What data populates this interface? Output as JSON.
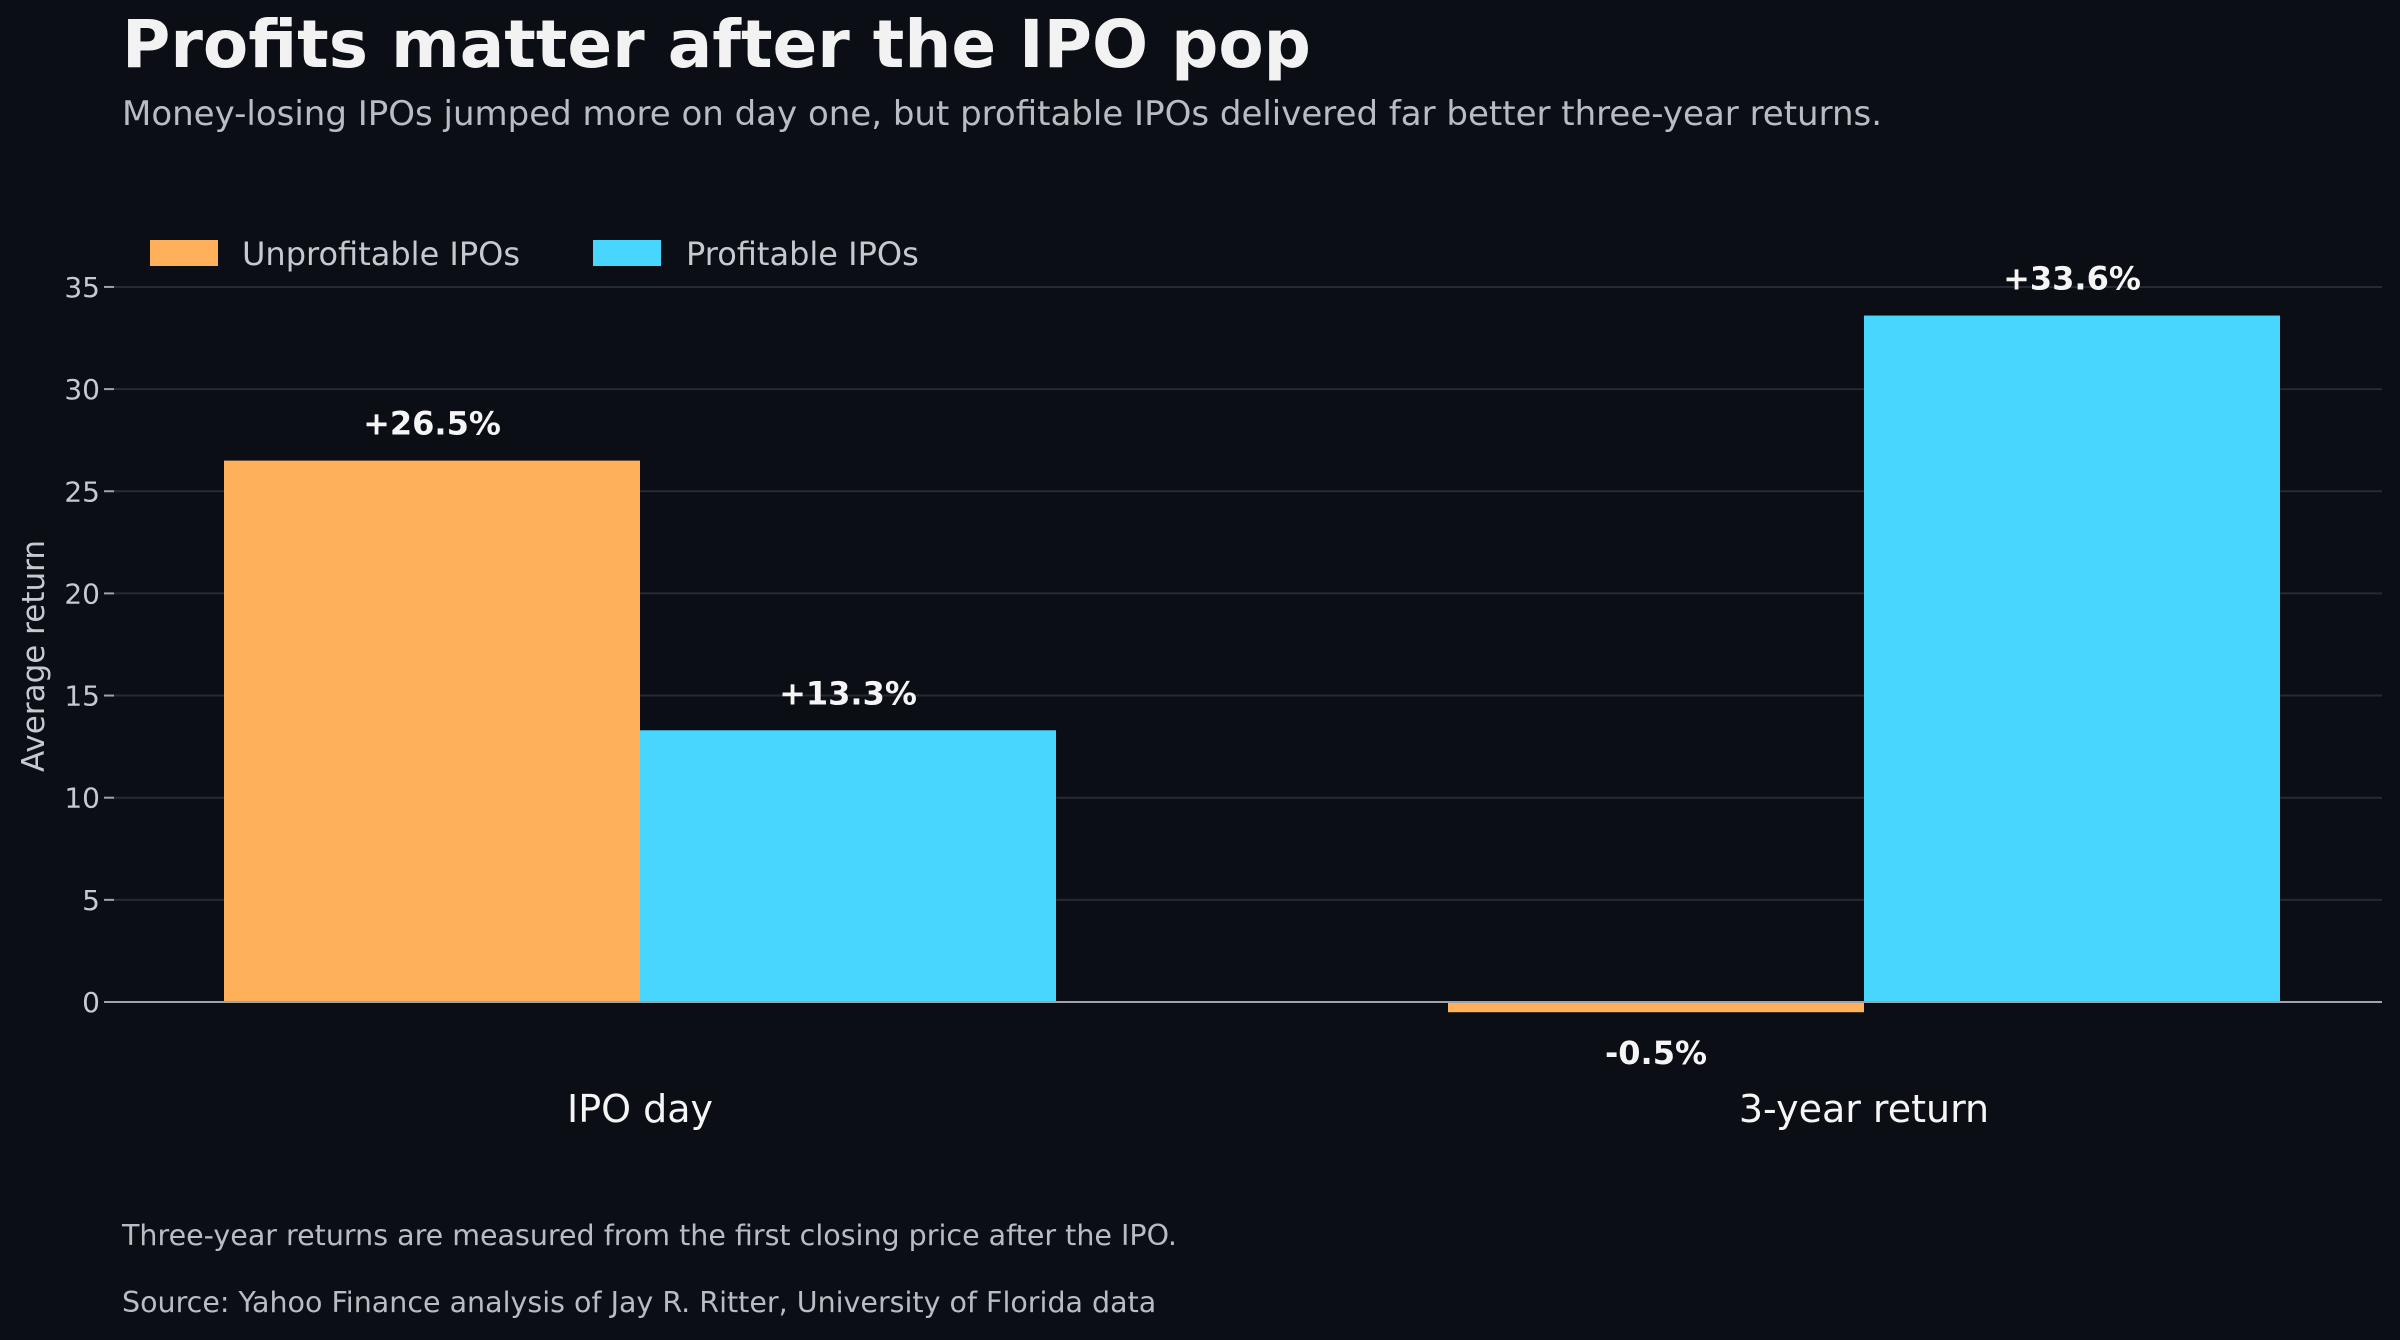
{
  "title": "Profits matter after the IPO pop",
  "subtitle": "Money-losing IPOs jumped more on day one, but profitable IPOs delivered far better three-year returns.",
  "note": "Three-year returns are measured from the first closing price after the IPO.",
  "source": "Source: Yahoo Finance analysis of Jay R. Ritter, University of Florida data",
  "chart_data": {
    "type": "bar",
    "categories": [
      "IPO day",
      "3-year return"
    ],
    "series": [
      {
        "name": "Unprofitable IPOs",
        "values": [
          26.5,
          -0.5
        ],
        "labels": [
          "+26.5%",
          "-0.5%"
        ],
        "color": "#ffb05a"
      },
      {
        "name": "Profitable IPOs",
        "values": [
          13.3,
          33.6
        ],
        "labels": [
          "+13.3%",
          "+33.6%"
        ],
        "color": "#48d6ff"
      }
    ],
    "ylabel": "Average return",
    "xlabel": "",
    "ylim": [
      -0.5,
      35
    ],
    "yticks": [
      0,
      5,
      10,
      15,
      20,
      25,
      30,
      35
    ],
    "grid": true,
    "legend_position": "top-left"
  },
  "colors": {
    "background": "#0b0e14",
    "grid": "#262a33",
    "axis": "#9ea3ad",
    "tick_text": "#c6c9cf",
    "label_text": "#f5f5f5"
  }
}
